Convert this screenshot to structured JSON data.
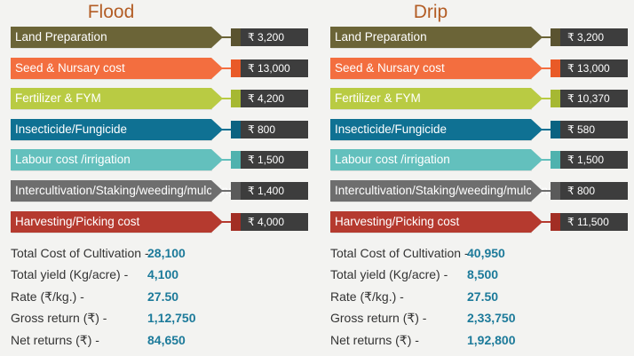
{
  "currency_symbol": "₹",
  "flood": {
    "title": "Flood",
    "items": [
      {
        "label": "Land Preparation",
        "value": "₹ 3,200",
        "color": "#6b6437",
        "swatch": "#5a5330"
      },
      {
        "label": "Seed & Nursary cost",
        "value": "₹ 13,000",
        "color": "#f36e3f",
        "swatch": "#e95a27"
      },
      {
        "label": "Fertilizer & FYM",
        "value": "₹ 4,200",
        "color": "#b9cb43",
        "swatch": "#a6b832"
      },
      {
        "label": "Insecticide/Fungicide",
        "value": "₹ 800",
        "color": "#0f7193",
        "swatch": "#0b6281"
      },
      {
        "label": "Labour cost /irrigation",
        "value": "₹ 1,500",
        "color": "#63c0bd",
        "swatch": "#4fb2ae"
      },
      {
        "label": "Intercultivation/Staking/weeding/mulching",
        "value": "₹ 1,400",
        "color": "#6e6e6e",
        "swatch": "#5a5a5a"
      },
      {
        "label": "Harvesting/Picking cost",
        "value": "₹ 4,000",
        "color": "#b53a2f",
        "swatch": "#a22e24"
      }
    ],
    "summary": [
      {
        "label": "Total Cost of Cultivation -",
        "value": "28,100"
      },
      {
        "label": "Total yield (Kg/acre) -",
        "value": "4,100"
      },
      {
        "label": "Rate (₹/kg.) -",
        "value": "27.50"
      },
      {
        "label": "Gross return (₹) -",
        "value": "1,12,750"
      },
      {
        "label": "Net returns (₹) -",
        "value": "84,650"
      }
    ]
  },
  "drip": {
    "title": "Drip",
    "items": [
      {
        "label": "Land Preparation",
        "value": "₹ 3,200",
        "color": "#6b6437",
        "swatch": "#5a5330"
      },
      {
        "label": "Seed & Nursary cost",
        "value": "₹ 13,000",
        "color": "#f36e3f",
        "swatch": "#e95a27"
      },
      {
        "label": "Fertilizer & FYM",
        "value": "₹ 10,370",
        "color": "#b9cb43",
        "swatch": "#a6b832"
      },
      {
        "label": "Insecticide/Fungicide",
        "value": "₹ 580",
        "color": "#0f7193",
        "swatch": "#0b6281"
      },
      {
        "label": "Labour cost /irrigation",
        "value": "₹ 1,500",
        "color": "#63c0bd",
        "swatch": "#4fb2ae"
      },
      {
        "label": "Intercultivation/Staking/weeding/mulching",
        "value": "₹ 800",
        "color": "#6e6e6e",
        "swatch": "#5a5a5a"
      },
      {
        "label": "Harvesting/Picking cost",
        "value": "₹ 11,500",
        "color": "#b53a2f",
        "swatch": "#a22e24"
      }
    ],
    "summary": [
      {
        "label": "Total Cost of Cultivation -",
        "value": "40,950"
      },
      {
        "label": "Total yield (Kg/acre) -",
        "value": "8,500"
      },
      {
        "label": "Rate (₹/kg.) -",
        "value": "27.50"
      },
      {
        "label": "Gross return (₹) -",
        "value": "2,33,750"
      },
      {
        "label": "Net returns (₹) -",
        "value": "1,92,800"
      }
    ]
  }
}
